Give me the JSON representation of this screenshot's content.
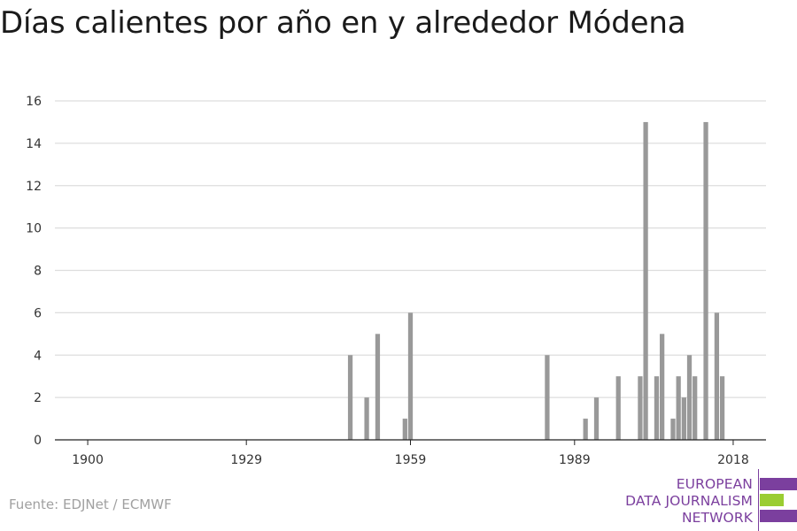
{
  "header": {
    "title": "Días calientes por año en y alrededor Módena"
  },
  "footer": {
    "source": "Fuente: EDJNet / ECMWF"
  },
  "logo": {
    "lines": [
      "EUROPEAN",
      "DATA JOURNALISM",
      "NETWORK"
    ],
    "colors": {
      "purple": "#7b3f9e",
      "green": "#9acd32"
    }
  },
  "chart_data": {
    "type": "bar",
    "title": "Días calientes por año en y alrededor Módena",
    "xlabel": "",
    "ylabel": "",
    "bar_color": "#999999",
    "grid": true,
    "xlim": [
      1894,
      2024
    ],
    "ylim": [
      0,
      16
    ],
    "x_ticks": [
      1900,
      1929,
      1959,
      1989,
      2018
    ],
    "y_ticks": [
      0,
      2,
      4,
      6,
      8,
      10,
      12,
      14,
      16
    ],
    "x": [
      1948,
      1951,
      1953,
      1958,
      1959,
      1984,
      1991,
      1993,
      1997,
      2001,
      2002,
      2004,
      2005,
      2007,
      2008,
      2009,
      2010,
      2011,
      2013,
      2015,
      2016
    ],
    "values": [
      4,
      2,
      5,
      1,
      6,
      4,
      1,
      2,
      3,
      3,
      15,
      3,
      5,
      1,
      3,
      2,
      4,
      3,
      15,
      6,
      3
    ]
  }
}
